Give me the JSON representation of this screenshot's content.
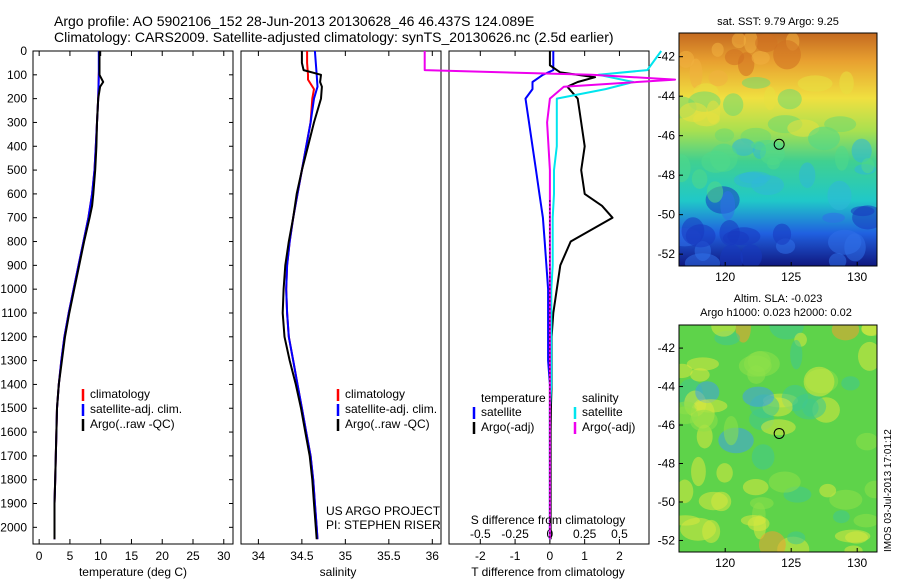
{
  "header": {
    "line1": "Argo profile: AO 5902106_152 28-Jun-2013 20130628_46 46.437S 124.089E",
    "line2": "Climatology: CARS2009. Satellite-adjusted climatology: synTS_20130626.nc (2.5d earlier)"
  },
  "credits": {
    "project": "US ARGO PROJECT",
    "pi": "PI: STEPHEN RISER"
  },
  "stamp": "IMOS 03-Jul-2013 17:01:12",
  "colors": {
    "climatology": "#ff0000",
    "satellite": "#0000ff",
    "argo": "#000000",
    "sat_sal": "#00e5ee",
    "argo_sal": "#ee00ee"
  },
  "chart_data": [
    {
      "type": "line",
      "id": "temperature",
      "xlabel": "temperature (deg C)",
      "ylabel": "depth",
      "xlim": [
        -1,
        31.5
      ],
      "ylim": [
        2070,
        0
      ],
      "xticks": [
        "0",
        "5",
        "10",
        "15",
        "20",
        "25",
        "30"
      ],
      "yticks": [
        "0",
        "100",
        "200",
        "300",
        "400",
        "500",
        "600",
        "700",
        "800",
        "900",
        "1000",
        "1100",
        "1200",
        "1300",
        "1400",
        "1500",
        "1600",
        "1700",
        "1800",
        "1900",
        "2000"
      ],
      "legend": [
        "climatology",
        "satellite-adj. clim.",
        "Argo(..raw -QC)"
      ],
      "series": [
        {
          "name": "climatology",
          "color": "#ff0000",
          "depth": [
            0,
            50,
            100,
            200,
            300,
            400,
            500,
            600,
            700,
            800,
            900,
            1000,
            1100,
            1200,
            1300,
            1400,
            1500,
            1600,
            1700,
            1800,
            1900,
            2000,
            2050
          ],
          "values": [
            9.8,
            9.8,
            9.7,
            9.6,
            9.4,
            9.2,
            9.0,
            8.6,
            8.0,
            7.2,
            6.4,
            5.6,
            4.8,
            4.1,
            3.6,
            3.2,
            2.9,
            2.8,
            2.7,
            2.6,
            2.5,
            2.5,
            2.5
          ]
        },
        {
          "name": "satellite-adj. clim.",
          "color": "#0000ff",
          "depth": [
            0,
            50,
            100,
            200,
            300,
            400,
            500,
            600,
            700,
            800,
            900,
            1000,
            1100,
            1200,
            1300,
            1400,
            1500,
            1600,
            1700,
            1800,
            1900,
            2000,
            2050
          ],
          "values": [
            9.7,
            9.7,
            9.7,
            9.6,
            9.4,
            9.2,
            9.0,
            8.6,
            8.0,
            7.2,
            6.4,
            5.6,
            4.8,
            4.1,
            3.6,
            3.2,
            2.9,
            2.8,
            2.7,
            2.6,
            2.5,
            2.5,
            2.5
          ]
        },
        {
          "name": "Argo(..raw -QC)",
          "color": "#000000",
          "depth": [
            0,
            50,
            100,
            110,
            130,
            150,
            200,
            300,
            400,
            500,
            600,
            650,
            700,
            800,
            900,
            1000,
            1100,
            1200,
            1300,
            1400,
            1500,
            1600,
            1700,
            1800,
            1900,
            2000,
            2050
          ],
          "values": [
            9.8,
            9.8,
            9.8,
            10.0,
            10.4,
            9.9,
            9.6,
            9.4,
            9.3,
            9.1,
            8.8,
            8.6,
            8.2,
            7.3,
            6.5,
            5.7,
            4.9,
            4.2,
            3.7,
            3.2,
            2.9,
            2.8,
            2.7,
            2.6,
            2.5,
            2.5,
            2.5
          ]
        }
      ]
    },
    {
      "type": "line",
      "id": "salinity",
      "xlabel": "salinity",
      "xlim": [
        33.8,
        36.1
      ],
      "ylim": [
        2070,
        0
      ],
      "xticks": [
        "34",
        "34.5",
        "35",
        "35.5",
        "36"
      ],
      "legend": [
        "climatology",
        "satellite-adj. clim.",
        "Argo(..raw -QC)"
      ],
      "series": [
        {
          "name": "climatology",
          "color": "#ff0000",
          "depth": [
            0,
            50,
            100,
            120,
            160,
            200,
            300,
            400,
            500,
            600,
            700,
            800,
            900,
            1000,
            1100,
            1200,
            1300,
            1400,
            1500,
            1600,
            1700,
            1800,
            1900,
            2000,
            2050
          ],
          "values": [
            34.56,
            34.56,
            34.57,
            34.57,
            34.64,
            34.62,
            34.6,
            34.55,
            34.5,
            34.45,
            34.4,
            34.36,
            34.33,
            34.32,
            34.33,
            34.35,
            34.4,
            34.45,
            34.5,
            34.55,
            34.6,
            34.63,
            34.65,
            34.67,
            34.68
          ]
        },
        {
          "name": "satellite-adj. clim.",
          "color": "#0000ff",
          "depth": [
            0,
            50,
            100,
            150,
            200,
            300,
            400,
            500,
            600,
            700,
            800,
            900,
            1000,
            1100,
            1200,
            1300,
            1400,
            1500,
            1600,
            1700,
            1800,
            1900,
            2000,
            2050
          ],
          "values": [
            34.65,
            34.66,
            34.67,
            34.68,
            34.64,
            34.6,
            34.55,
            34.5,
            34.45,
            34.4,
            34.36,
            34.33,
            34.32,
            34.33,
            34.35,
            34.4,
            34.45,
            34.5,
            34.55,
            34.6,
            34.63,
            34.65,
            34.67,
            34.68
          ]
        },
        {
          "name": "Argo(..raw -QC)",
          "color": "#000000",
          "depth": [
            0,
            50,
            80,
            100,
            130,
            150,
            200,
            300,
            400,
            500,
            600,
            700,
            800,
            900,
            1000,
            1100,
            1200,
            1300,
            1400,
            1500,
            1600,
            1700,
            1800,
            1900,
            2000,
            2050
          ],
          "values": [
            34.5,
            34.5,
            34.52,
            34.72,
            34.71,
            34.73,
            34.72,
            34.64,
            34.57,
            34.5,
            34.44,
            34.4,
            34.35,
            34.31,
            34.29,
            34.28,
            34.3,
            34.36,
            34.43,
            34.49,
            34.54,
            34.59,
            34.62,
            34.64,
            34.66,
            34.67
          ]
        }
      ]
    },
    {
      "type": "line",
      "id": "difference",
      "xlabel": "T difference from climatology",
      "xlabel_top": "S difference from climatology",
      "xlim": [
        -2.9,
        2.85
      ],
      "ylim": [
        2070,
        0
      ],
      "xticks": [
        "-2",
        "-1",
        "0",
        "1",
        "2"
      ],
      "xticks_top": [
        "-0.5",
        "-0.25",
        "0",
        "0.25",
        "0.5"
      ],
      "legend_titles": [
        "temperature",
        "salinity"
      ],
      "legend": [
        "satellite",
        "Argo(-adj)",
        "satellite",
        "Argo(-adj)"
      ],
      "series": [
        {
          "name": "T satellite",
          "color": "#0000ff",
          "depth": [
            0,
            80,
            100,
            130,
            160,
            200,
            300,
            400,
            500,
            600,
            700,
            800,
            900,
            1000,
            1100,
            1200,
            1300,
            1400,
            1500,
            1600,
            1700,
            1800,
            1900,
            2000,
            2050
          ],
          "values": [
            0.1,
            0.1,
            -0.2,
            -0.5,
            -0.5,
            -0.7,
            -0.6,
            -0.5,
            -0.4,
            -0.3,
            -0.2,
            -0.15,
            -0.1,
            -0.05,
            -0.05,
            -0.05,
            -0.05,
            0,
            0,
            0,
            0,
            0,
            0,
            0,
            0
          ]
        },
        {
          "name": "T Argo(-adj)",
          "color": "#000000",
          "depth": [
            0,
            60,
            90,
            110,
            130,
            150,
            200,
            300,
            400,
            500,
            600,
            650,
            700,
            800,
            900,
            1000,
            1100,
            1200,
            1300,
            1400,
            1500,
            1600,
            1700,
            1800,
            1900,
            2000,
            2050
          ],
          "values": [
            0.0,
            0.0,
            0.3,
            1.3,
            0.8,
            0.5,
            0.8,
            0.9,
            1.0,
            0.9,
            1.0,
            1.5,
            1.8,
            0.6,
            0.3,
            0.2,
            0.1,
            0.05,
            0.05,
            0.05,
            0.03,
            0.02,
            0.02,
            0.02,
            0.02,
            0.02,
            0.02
          ]
        },
        {
          "name": "S satellite",
          "color": "#00e5ee",
          "depth": [
            0,
            80,
            100,
            130,
            160,
            200,
            300,
            400,
            500,
            600,
            700,
            800,
            900,
            1000,
            1100,
            1200,
            1300,
            1400,
            1500,
            1600,
            1700,
            1800,
            1900,
            2000,
            2050
          ],
          "values": [
            0.8,
            0.7,
            0.35,
            0.6,
            0.4,
            0.05,
            0.05,
            0.05,
            0.03,
            0.03,
            0.02,
            0.02,
            0.02,
            0.01,
            0.01,
            0.01,
            0.01,
            0.01,
            0,
            0,
            0,
            0,
            0,
            0,
            0
          ]
        },
        {
          "name": "S Argo(-adj)",
          "color": "#ee00ee",
          "depth": [
            0,
            80,
            100,
            120,
            150,
            200,
            300,
            400,
            500,
            600,
            700,
            800,
            900,
            1000,
            1100,
            1200,
            1300,
            1400,
            1500,
            1600,
            1700,
            1800,
            1900,
            2000,
            2050
          ],
          "values": [
            -0.9,
            -0.9,
            0.3,
            0.9,
            0.1,
            0.0,
            -0.02,
            -0.01,
            0.0,
            0.0,
            0.0,
            0.0,
            0.0,
            0.0,
            0.0,
            0.0,
            0.0,
            0.0,
            0.0,
            0.0,
            0.0,
            0.0,
            0.0,
            0.0,
            0.0
          ]
        }
      ]
    },
    {
      "type": "heatmap",
      "id": "sst-map",
      "title": "sat. SST: 9.79 Argo: 9.25",
      "xlim": [
        116.5,
        131.5
      ],
      "ylim": [
        -52.6,
        -40.8
      ],
      "xticks": [
        "120",
        "125",
        "130"
      ],
      "yticks": [
        "-42",
        "-44",
        "-46",
        "-48",
        "-50",
        "-52"
      ],
      "marker": {
        "lon": 124.089,
        "lat": -46.437
      }
    },
    {
      "type": "heatmap",
      "id": "sla-map",
      "title": "Altim. SLA: -0.023",
      "subtitle": "Argo h1000: 0.023 h2000: 0.02",
      "xlim": [
        116.5,
        131.5
      ],
      "ylim": [
        -52.6,
        -40.8
      ],
      "xticks": [
        "120",
        "125",
        "130"
      ],
      "yticks": [
        "-42",
        "-44",
        "-46",
        "-48",
        "-50",
        "-52"
      ],
      "marker": {
        "lon": 124.089,
        "lat": -46.437
      }
    }
  ]
}
